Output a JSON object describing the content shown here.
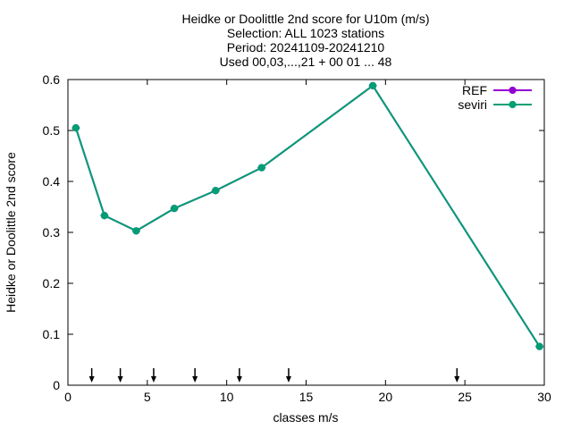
{
  "chart_data": {
    "type": "line",
    "title_lines": [
      "Heidke or Doolittle 2nd score  for U10m (m/s)",
      "Selection: ALL   1023 stations",
      "Period: 20241109-20241210",
      "Used 00,03,...,21 + 00 01 ... 48"
    ],
    "xlabel": "classes m/s",
    "ylabel": "Heidke or Doolittle 2nd score",
    "xlim": [
      0,
      30
    ],
    "ylim": [
      0,
      0.6
    ],
    "xticks": [
      0,
      5,
      10,
      15,
      20,
      25,
      30
    ],
    "xtick_labels": [
      "0",
      "5",
      "10",
      "15",
      "20",
      "25",
      "30"
    ],
    "yticks": [
      0,
      0.1,
      0.2,
      0.3,
      0.4,
      0.5,
      0.6
    ],
    "ytick_labels": [
      "0",
      "0.1",
      "0.2",
      "0.3",
      "0.4",
      "0.5",
      "0.6"
    ],
    "grid": false,
    "legend_position": "top-right",
    "series": [
      {
        "name": "REF",
        "color": "#9400d3",
        "x": [
          0.5,
          2.3,
          4.3,
          6.7,
          9.3,
          12.2,
          19.2,
          29.7
        ],
        "y": [
          0.505,
          0.333,
          0.303,
          0.347,
          0.382,
          0.427,
          0.588,
          0.076
        ]
      },
      {
        "name": "seviri",
        "color": "#009e73",
        "x": [
          0.5,
          2.3,
          4.3,
          6.7,
          9.3,
          12.2,
          19.2,
          29.7
        ],
        "y": [
          0.505,
          0.333,
          0.303,
          0.347,
          0.382,
          0.427,
          0.588,
          0.076
        ]
      }
    ],
    "class_boundary_arrows": [
      1.5,
      3.3,
      5.4,
      8.0,
      10.8,
      13.9,
      24.5
    ]
  }
}
